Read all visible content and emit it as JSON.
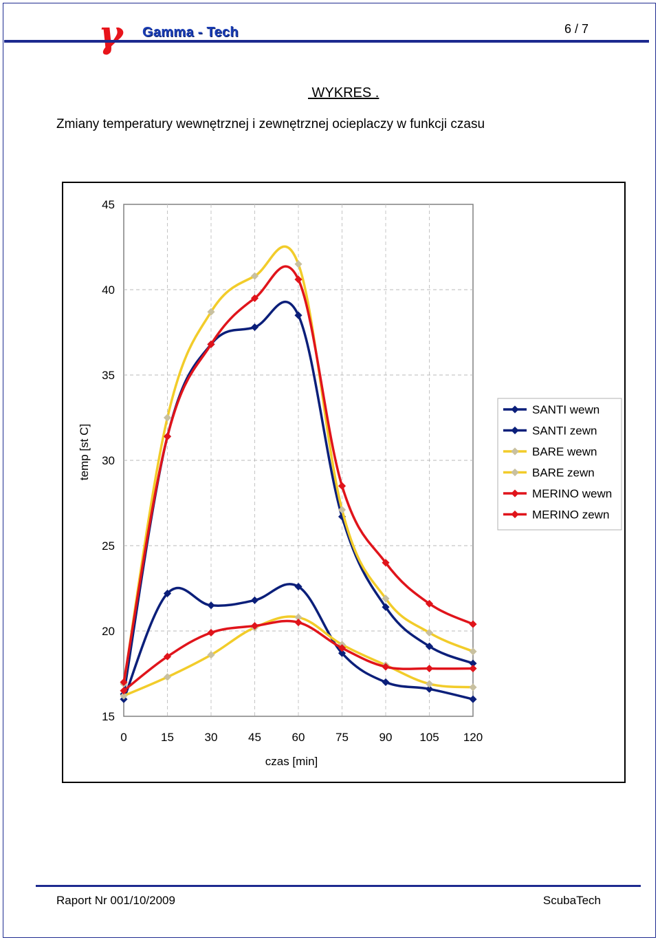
{
  "header": {
    "logo_symbol": "γ",
    "brand": "Gamma - Tech",
    "page_number": "6 / 7"
  },
  "heading": {
    "label": " WYKRES .",
    "subtitle": "Zmiany temperatury wewnętrznej i zewnętrznej ocieplaczy w funkcji czasu"
  },
  "footer": {
    "report": "Raport Nr 001/10/2009",
    "company": "ScubaTech"
  },
  "colors": {
    "brand_blue": "#1a3db5",
    "logo_red": "#e8141b",
    "rule_blue": "#1d2a8f"
  },
  "chart_data": {
    "type": "line",
    "title": "",
    "xlabel": "czas [min]",
    "ylabel": "temp [st C]",
    "x_ticks": [
      "0",
      "15",
      "30",
      "45",
      "60",
      "75",
      "90",
      "105",
      "120"
    ],
    "y_ticks": [
      "15",
      "20",
      "25",
      "30",
      "35",
      "40",
      "45"
    ],
    "xlim": [
      0,
      120
    ],
    "ylim": [
      15,
      45
    ],
    "grid": "horizontal dashed + vertical dashed",
    "legend_position": "right",
    "x": [
      0,
      15,
      30,
      45,
      60,
      75,
      90,
      105,
      120
    ],
    "series": [
      {
        "name": "SANTI wewn",
        "color": "#0b1f7a",
        "marker": "diamond",
        "values": [
          16.0,
          22.2,
          21.5,
          21.8,
          22.6,
          18.7,
          17.0,
          16.6,
          16.0
        ]
      },
      {
        "name": "SANTI zewn",
        "color": "#0b1f7a",
        "marker": "diamond",
        "values": [
          16.3,
          31.4,
          36.8,
          37.8,
          38.5,
          26.7,
          21.4,
          19.1,
          18.1
        ]
      },
      {
        "name": "BARE wewn",
        "color": "#f2cc2a",
        "marker": "diamond",
        "values": [
          16.2,
          17.3,
          18.6,
          20.2,
          20.8,
          19.2,
          18.0,
          16.9,
          16.7
        ]
      },
      {
        "name": "BARE zewn",
        "color": "#f2cc2a",
        "marker": "diamond",
        "values": [
          16.9,
          32.5,
          38.7,
          40.8,
          41.5,
          27.1,
          21.9,
          19.9,
          18.8
        ]
      },
      {
        "name": "MERINO wewn",
        "color": "#e0141b",
        "marker": "diamond",
        "values": [
          16.5,
          18.5,
          19.9,
          20.3,
          20.5,
          19.0,
          17.9,
          17.8,
          17.8
        ]
      },
      {
        "name": "MERINO zewn",
        "color": "#e0141b",
        "marker": "diamond",
        "values": [
          17.0,
          31.4,
          36.8,
          39.5,
          40.6,
          28.5,
          24.0,
          21.6,
          20.4
        ]
      }
    ]
  }
}
